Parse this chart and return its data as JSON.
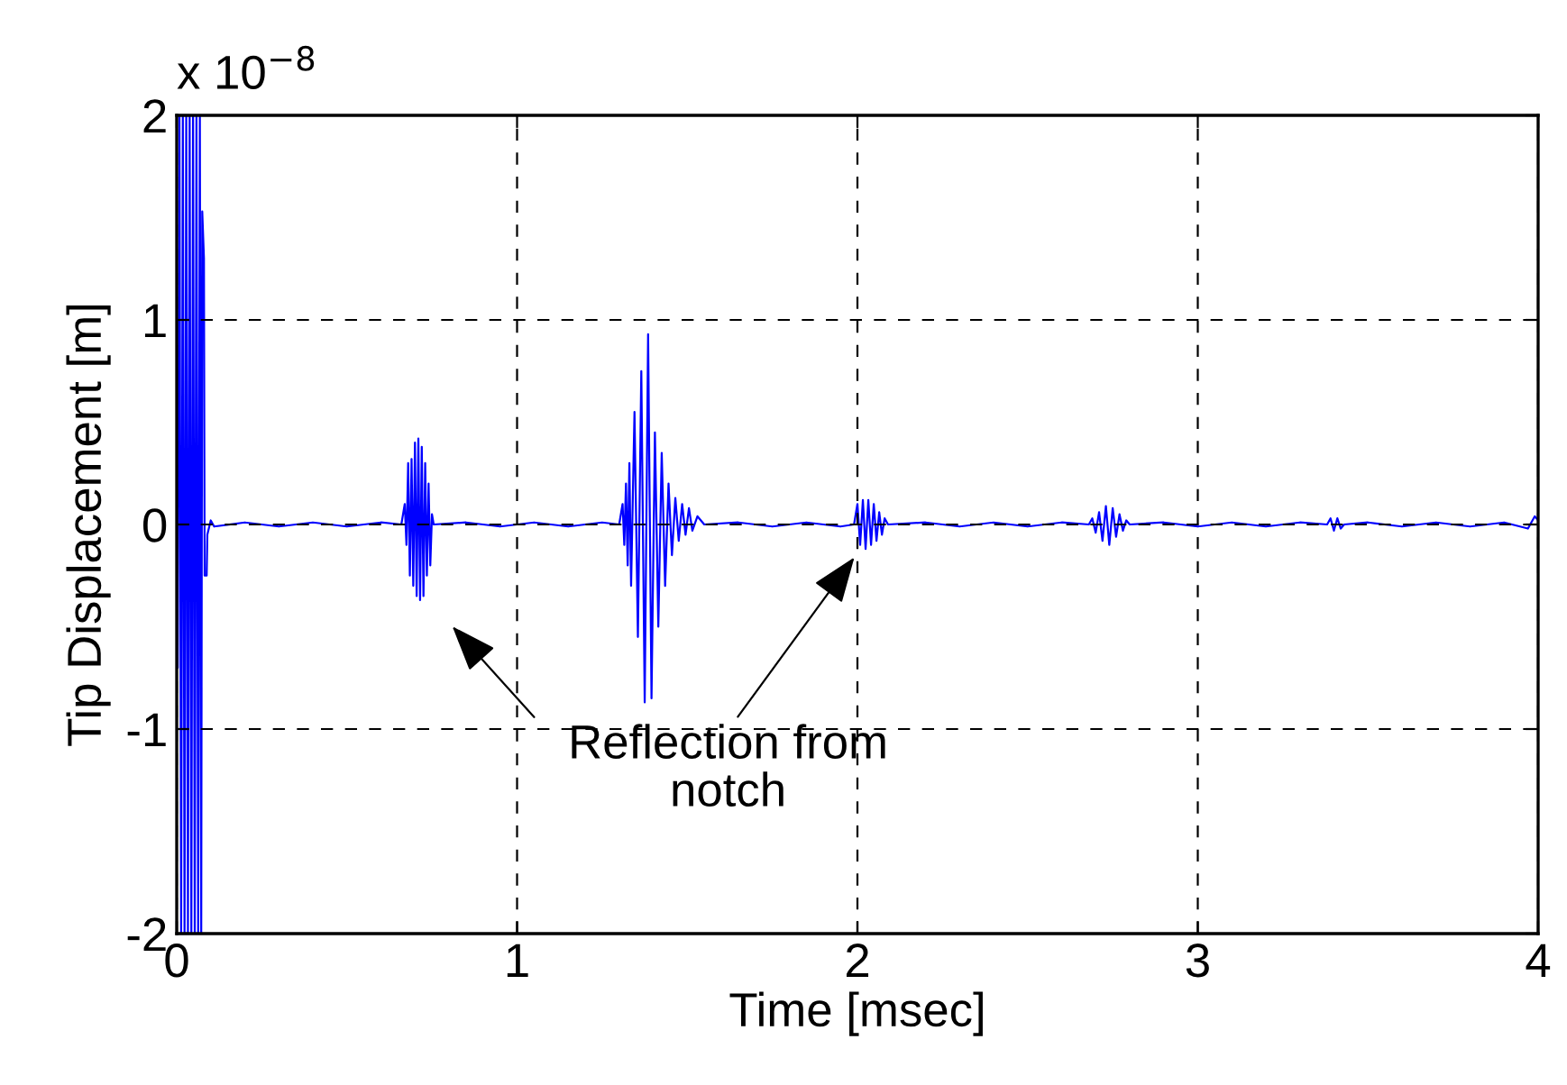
{
  "chart_data": {
    "type": "line",
    "xlabel": "Time [msec]",
    "ylabel": "Tip Displacement [m]",
    "annotations": [
      "x 10$^{−8}$",
      "Reflection from\nnotch"
    ],
    "xlim": [
      0,
      4
    ],
    "xticks": [
      0,
      1,
      2,
      3,
      4
    ],
    "ylim": [
      -2,
      2
    ],
    "yticks": [
      -2,
      -1,
      0,
      1,
      2
    ],
    "grid": true,
    "marker": "none",
    "line_style": "solid",
    "series": [
      {
        "color": "#0000ff",
        "x": [
          0,
          0.003,
          0.008,
          0.013,
          0.018,
          0.023,
          0.028,
          0.033,
          0.038,
          0.043,
          0.048,
          0.053,
          0.058,
          0.063,
          0.068,
          0.072,
          0.075,
          0.08,
          0.082,
          0.088,
          0.09,
          0.1,
          0.11,
          0.2,
          0.3,
          0.4,
          0.5,
          0.6,
          0.66,
          0.67,
          0.675,
          0.68,
          0.685,
          0.69,
          0.695,
          0.7,
          0.705,
          0.71,
          0.715,
          0.72,
          0.725,
          0.73,
          0.735,
          0.74,
          0.745,
          0.75,
          0.755,
          0.85,
          0.95,
          1.05,
          1.15,
          1.25,
          1.3,
          1.31,
          1.315,
          1.32,
          1.325,
          1.33,
          1.335,
          1.345,
          1.355,
          1.365,
          1.375,
          1.385,
          1.395,
          1.405,
          1.415,
          1.425,
          1.435,
          1.445,
          1.455,
          1.465,
          1.475,
          1.485,
          1.495,
          1.505,
          1.515,
          1.53,
          1.55,
          1.65,
          1.75,
          1.85,
          1.95,
          1.99,
          2.0,
          2.008,
          2.016,
          2.024,
          2.032,
          2.04,
          2.048,
          2.056,
          2.064,
          2.072,
          2.08,
          2.09,
          2.2,
          2.3,
          2.4,
          2.5,
          2.6,
          2.68,
          2.69,
          2.7,
          2.71,
          2.72,
          2.73,
          2.74,
          2.75,
          2.76,
          2.77,
          2.78,
          2.79,
          2.8,
          2.9,
          3.0,
          3.1,
          3.2,
          3.3,
          3.38,
          3.39,
          3.4,
          3.41,
          3.42,
          3.43,
          3.5,
          3.6,
          3.7,
          3.8,
          3.9,
          3.97,
          3.99,
          4.0
        ],
        "values": [
          0,
          -0.7,
          2,
          -2,
          2,
          -2,
          2,
          -2,
          2,
          -2,
          2,
          -2,
          2,
          -2,
          2,
          -2,
          1.53,
          1.3,
          -0.25,
          -0.25,
          -0.05,
          0.02,
          -0.01,
          0.01,
          -0.01,
          0.01,
          -0.01,
          0.01,
          0,
          0.1,
          -0.1,
          0.3,
          -0.25,
          0.32,
          -0.3,
          0.4,
          -0.35,
          0.42,
          -0.37,
          0.38,
          -0.35,
          0.3,
          -0.25,
          0.2,
          -0.2,
          0.05,
          0,
          0.01,
          -0.01,
          0.01,
          -0.01,
          0.01,
          0,
          0.1,
          -0.1,
          0.2,
          -0.2,
          0.3,
          -0.3,
          0.55,
          -0.55,
          0.75,
          -0.87,
          0.93,
          -0.85,
          0.45,
          -0.5,
          0.35,
          -0.3,
          0.2,
          -0.15,
          0.13,
          -0.08,
          0.1,
          -0.05,
          0.08,
          -0.03,
          0.04,
          0,
          0.01,
          -0.01,
          0.01,
          -0.01,
          0,
          0.1,
          -0.1,
          0.12,
          -0.12,
          0.12,
          -0.1,
          0.1,
          -0.08,
          0.06,
          -0.05,
          0.03,
          0,
          0.01,
          -0.01,
          0.01,
          -0.01,
          0.01,
          0,
          0.03,
          -0.04,
          0.06,
          -0.08,
          0.09,
          -0.1,
          0.08,
          -0.06,
          0.05,
          -0.03,
          0.02,
          0,
          0.01,
          -0.01,
          0.01,
          -0.01,
          0.01,
          0,
          0.03,
          -0.03,
          0.03,
          -0.02,
          0,
          0.01,
          -0.01,
          0.01,
          -0.01,
          0.01,
          -0.02,
          0.04,
          0.02
        ]
      }
    ]
  }
}
